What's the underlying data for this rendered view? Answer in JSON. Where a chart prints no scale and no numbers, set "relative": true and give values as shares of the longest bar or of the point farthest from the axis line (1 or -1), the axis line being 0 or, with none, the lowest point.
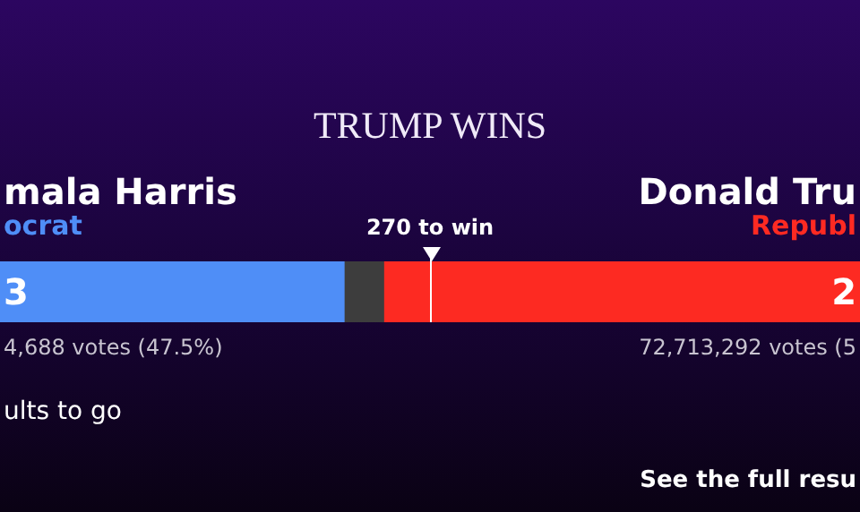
{
  "chart_data": {
    "type": "bar",
    "orientation": "horizontal",
    "stacked": true,
    "relative": true,
    "title": "TRUMP WINS",
    "categories": [
      null
    ],
    "series": [
      {
        "name": "mala Harris",
        "color": "#4f8ef7",
        "values": [
          0.4
        ]
      },
      {
        "color": "#3d3d3d",
        "values": [
          0.046
        ]
      },
      {
        "name": "Donald Tru",
        "color": "#fd2a22",
        "values": [
          0.554
        ]
      }
    ],
    "ref_lines": [
      {
        "axis": "x",
        "value": 0.5,
        "label": "270 to win",
        "color": "#ffffff"
      }
    ],
    "annotations": [
      "3",
      "2",
      "ocrat",
      "Republ",
      "4,688 votes (47.5%)",
      "72,713,292 votes (5",
      "ults to go",
      "See the full resu"
    ]
  }
}
